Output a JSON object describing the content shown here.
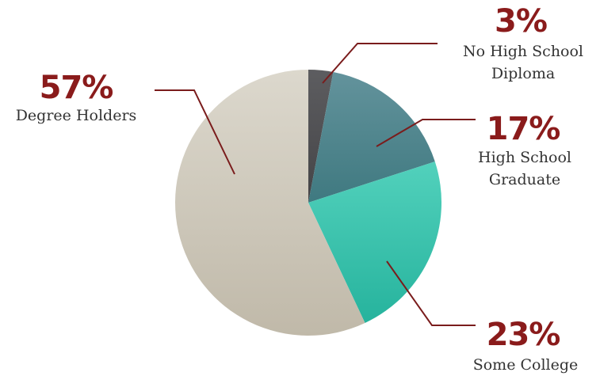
{
  "chart_data": {
    "type": "pie",
    "start": "top",
    "direction": "clockwise",
    "slices": [
      {
        "label_lines": [
          "No High School",
          "Diploma"
        ],
        "value": 3,
        "value_label": "3%",
        "color_top": "#5d5d60",
        "color_bottom": "#444447"
      },
      {
        "label_lines": [
          "High School",
          "Graduate"
        ],
        "value": 17,
        "value_label": "17%",
        "color_top": "#63939c",
        "color_bottom": "#3f7980"
      },
      {
        "label_lines": [
          "Some College"
        ],
        "value": 23,
        "value_label": "23%",
        "color_top": "#52d1bc",
        "color_bottom": "#26b39d"
      },
      {
        "label_lines": [
          "Degree Holders"
        ],
        "value": 57,
        "value_label": "57%",
        "color_top": "#dcd8cd",
        "color_bottom": "#c0b9a9"
      }
    ],
    "value_label_color": "#8a1b1b",
    "leader_color": "#7a1c1c"
  }
}
